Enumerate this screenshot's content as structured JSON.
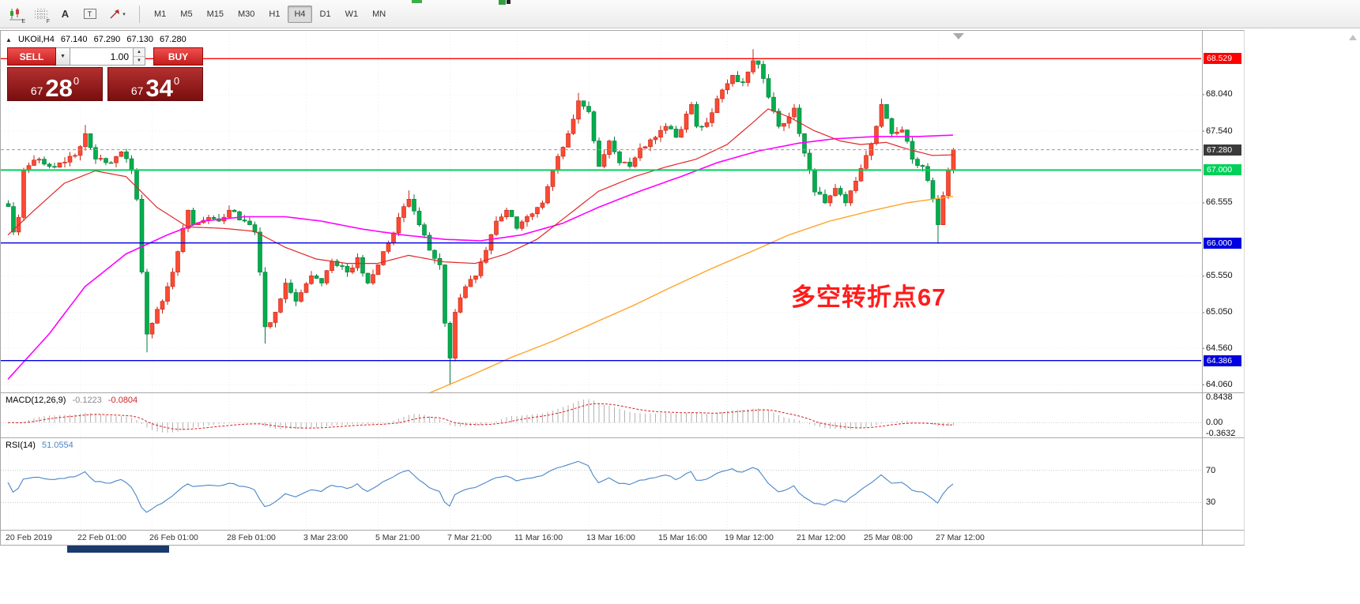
{
  "toolbar": {
    "tools": [
      {
        "name": "chart-indicator-icon",
        "badge": "E"
      },
      {
        "name": "grid-icon",
        "badge": "F"
      },
      {
        "name": "text-label-icon",
        "glyph": "A"
      },
      {
        "name": "text-box-icon",
        "glyph": "T"
      },
      {
        "name": "draw-arrow-icon",
        "caret": "▾"
      }
    ],
    "timeframes": [
      "M1",
      "M5",
      "M15",
      "M30",
      "H1",
      "H4",
      "D1",
      "W1",
      "MN"
    ],
    "active_timeframe": "H4"
  },
  "symbol_line": {
    "collapse_glyph": "▲",
    "symbol": "UKOil,H4",
    "open": "67.140",
    "high": "67.290",
    "low": "67.130",
    "close": "67.280"
  },
  "trade_panel": {
    "sell_label": "SELL",
    "buy_label": "BUY",
    "volume": "1.00",
    "caret_down": "▼",
    "spin_up": "▲",
    "spin_down": "▼",
    "sell_price": {
      "small": "67",
      "big": "28",
      "sup": "0"
    },
    "buy_price": {
      "small": "67",
      "big": "34",
      "sup": "0"
    }
  },
  "annotation": {
    "text": "多空转折点67",
    "color": "#ff1c1c"
  },
  "macd_panel": {
    "label": "MACD(12,26,9)",
    "main_value": "-0.1223",
    "signal_value": "-0.0804",
    "axis_labels": [
      {
        "v": 0.8438,
        "s": "0.8438"
      },
      {
        "v": 0,
        "s": "0.00"
      },
      {
        "v": -0.3632,
        "s": "-0.3632"
      }
    ]
  },
  "rsi_panel": {
    "label": "RSI(14)",
    "value": "51.0554",
    "levels": [
      {
        "v": 70,
        "s": "70"
      },
      {
        "v": 30,
        "s": "30"
      }
    ]
  },
  "time_axis": [
    {
      "i": 0,
      "s": "20 Feb 2019"
    },
    {
      "i": 14,
      "s": "22 Feb 01:00"
    },
    {
      "i": 28,
      "s": "26 Feb 01:00"
    },
    {
      "i": 43,
      "s": "28 Feb 01:00"
    },
    {
      "i": 58,
      "s": "3 Mar 23:00"
    },
    {
      "i": 72,
      "s": "5 Mar 21:00"
    },
    {
      "i": 86,
      "s": "7 Mar 21:00"
    },
    {
      "i": 99,
      "s": "11 Mar 16:00"
    },
    {
      "i": 113,
      "s": "13 Mar 16:00"
    },
    {
      "i": 127,
      "s": "15 Mar 16:00"
    },
    {
      "i": 140,
      "s": "19 Mar 12:00"
    },
    {
      "i": 154,
      "s": "21 Mar 12:00"
    },
    {
      "i": 167,
      "s": "25 Mar 08:00"
    },
    {
      "i": 181,
      "s": "27 Mar 12:00"
    }
  ],
  "price_axis": {
    "range": {
      "min": 63.95,
      "max": 68.9
    },
    "ticks": [
      {
        "v": 68.04,
        "s": "68.040"
      },
      {
        "v": 67.54,
        "s": "67.540"
      },
      {
        "v": 66.555,
        "s": "66.555"
      },
      {
        "v": 65.55,
        "s": "65.550"
      },
      {
        "v": 65.05,
        "s": "65.050"
      },
      {
        "v": 64.56,
        "s": "64.560"
      },
      {
        "v": 64.06,
        "s": "64.060"
      }
    ],
    "current": {
      "v": 67.28,
      "s": "67.280",
      "bg": "#3a3a3a"
    },
    "levels": [
      {
        "v": 68.529,
        "s": "68.529",
        "color": "#ff0000",
        "w": 1.4
      },
      {
        "v": 67.0,
        "s": "67.000",
        "color": "#00d05a",
        "w": 2
      },
      {
        "v": 66.0,
        "s": "66.000",
        "color": "#0000e0",
        "w": 1.4
      },
      {
        "v": 64.386,
        "s": "64.386",
        "color": "#0000e0",
        "w": 1.4
      }
    ]
  },
  "chart_data": {
    "type": "candlestick",
    "title": "UKOil,H4",
    "timeframe": "H4",
    "candle_count": 185,
    "ohlc_current": {
      "open": 67.14,
      "high": 67.29,
      "low": 67.13,
      "close": 67.28
    },
    "ylim": [
      63.95,
      68.9
    ],
    "colors": {
      "up": "#fb4a32",
      "up_stroke": "#c32415",
      "down": "#00ae4d",
      "down_stroke": "#077a38",
      "ma_fast": "#e02828",
      "ma_mid": "#ff00ff",
      "ma_slow": "#ffa428",
      "macd_hist": "#b2b2b2",
      "macd_signal": "#d82020",
      "rsi": "#4a86c8"
    },
    "price_path": [
      [
        0,
        66.5
      ],
      [
        1,
        66.15
      ],
      [
        2,
        66.35
      ],
      [
        3,
        67.0
      ],
      [
        6,
        67.15
      ],
      [
        8,
        67.05
      ],
      [
        10,
        67.1
      ],
      [
        13,
        67.2
      ],
      [
        15,
        67.5
      ],
      [
        17,
        67.15
      ],
      [
        20,
        67.1
      ],
      [
        22,
        67.25
      ],
      [
        24,
        67.0
      ],
      [
        25,
        66.6
      ],
      [
        26,
        65.6
      ],
      [
        27,
        64.75
      ],
      [
        28,
        64.9
      ],
      [
        30,
        65.2
      ],
      [
        32,
        65.6
      ],
      [
        34,
        66.2
      ],
      [
        35,
        66.45
      ],
      [
        36,
        66.25
      ],
      [
        39,
        66.35
      ],
      [
        41,
        66.3
      ],
      [
        43,
        66.45
      ],
      [
        46,
        66.3
      ],
      [
        48,
        66.15
      ],
      [
        49,
        65.6
      ],
      [
        50,
        64.85
      ],
      [
        52,
        65.05
      ],
      [
        54,
        65.45
      ],
      [
        56,
        65.2
      ],
      [
        59,
        65.55
      ],
      [
        61,
        65.45
      ],
      [
        63,
        65.75
      ],
      [
        66,
        65.6
      ],
      [
        68,
        65.8
      ],
      [
        70,
        65.45
      ],
      [
        72,
        65.7
      ],
      [
        74,
        66.0
      ],
      [
        76,
        66.35
      ],
      [
        78,
        66.6
      ],
      [
        80,
        66.25
      ],
      [
        82,
        65.9
      ],
      [
        84,
        65.7
      ],
      [
        85,
        64.9
      ],
      [
        86,
        64.42
      ],
      [
        87,
        65.05
      ],
      [
        89,
        65.4
      ],
      [
        91,
        65.55
      ],
      [
        93,
        65.9
      ],
      [
        95,
        66.3
      ],
      [
        97,
        66.45
      ],
      [
        99,
        66.2
      ],
      [
        102,
        66.4
      ],
      [
        104,
        66.55
      ],
      [
        106,
        67.0
      ],
      [
        109,
        67.5
      ],
      [
        111,
        67.95
      ],
      [
        113,
        67.8
      ],
      [
        115,
        67.05
      ],
      [
        117,
        67.4
      ],
      [
        119,
        67.1
      ],
      [
        121,
        67.05
      ],
      [
        123,
        67.3
      ],
      [
        126,
        67.45
      ],
      [
        128,
        67.6
      ],
      [
        130,
        67.45
      ],
      [
        133,
        67.9
      ],
      [
        134,
        67.6
      ],
      [
        136,
        67.65
      ],
      [
        139,
        68.1
      ],
      [
        141,
        68.3
      ],
      [
        143,
        68.2
      ],
      [
        145,
        68.5
      ],
      [
        146,
        68.45
      ],
      [
        148,
        68.0
      ],
      [
        150,
        67.6
      ],
      [
        153,
        67.85
      ],
      [
        154,
        67.5
      ],
      [
        156,
        67.0
      ],
      [
        157,
        66.7
      ],
      [
        159,
        66.55
      ],
      [
        161,
        66.75
      ],
      [
        163,
        66.55
      ],
      [
        165,
        66.85
      ],
      [
        167,
        67.2
      ],
      [
        169,
        67.6
      ],
      [
        170,
        67.9
      ],
      [
        172,
        67.5
      ],
      [
        174,
        67.55
      ],
      [
        176,
        67.15
      ],
      [
        178,
        67.05
      ],
      [
        180,
        66.6
      ],
      [
        181,
        66.25
      ],
      [
        183,
        67.0
      ],
      [
        184,
        67.28
      ]
    ],
    "spikes": [
      {
        "i": 15,
        "high": 67.62
      },
      {
        "i": 27,
        "low": 64.5
      },
      {
        "i": 50,
        "low": 64.62
      },
      {
        "i": 78,
        "high": 66.72
      },
      {
        "i": 86,
        "low": 64.05
      },
      {
        "i": 111,
        "high": 68.06
      },
      {
        "i": 145,
        "high": 68.66
      },
      {
        "i": 170,
        "high": 67.98
      },
      {
        "i": 181,
        "low": 65.99
      }
    ],
    "moving_averages": [
      {
        "name": "ma-slow-orange",
        "color_key": "ma_slow",
        "width": 1.4,
        "points": [
          [
            82,
            63.94
          ],
          [
            91,
            64.21
          ],
          [
            98,
            64.43
          ],
          [
            106,
            64.65
          ],
          [
            114,
            64.9
          ],
          [
            122,
            65.15
          ],
          [
            129,
            65.39
          ],
          [
            137,
            65.65
          ],
          [
            145,
            65.89
          ],
          [
            152,
            66.11
          ],
          [
            160,
            66.3
          ],
          [
            168,
            66.44
          ],
          [
            175,
            66.55
          ],
          [
            184,
            66.64
          ]
        ]
      },
      {
        "name": "ma-mid-magenta",
        "color_key": "ma_mid",
        "width": 1.6,
        "points": [
          [
            0,
            64.13
          ],
          [
            8,
            64.75
          ],
          [
            15,
            65.4
          ],
          [
            23,
            65.85
          ],
          [
            31,
            66.11
          ],
          [
            38,
            66.3
          ],
          [
            46,
            66.36
          ],
          [
            54,
            66.36
          ],
          [
            61,
            66.3
          ],
          [
            69,
            66.19
          ],
          [
            77,
            66.11
          ],
          [
            85,
            66.05
          ],
          [
            92,
            66.03
          ],
          [
            100,
            66.11
          ],
          [
            108,
            66.27
          ],
          [
            115,
            66.49
          ],
          [
            123,
            66.71
          ],
          [
            131,
            66.91
          ],
          [
            138,
            67.1
          ],
          [
            146,
            67.26
          ],
          [
            154,
            67.37
          ],
          [
            161,
            67.43
          ],
          [
            169,
            67.46
          ],
          [
            177,
            67.46
          ],
          [
            184,
            67.48
          ]
        ]
      },
      {
        "name": "ma-fast-red",
        "color_key": "ma_fast",
        "width": 1.2,
        "points": [
          [
            0,
            66.11
          ],
          [
            5,
            66.44
          ],
          [
            11,
            66.82
          ],
          [
            17,
            66.99
          ],
          [
            23,
            66.91
          ],
          [
            29,
            66.49
          ],
          [
            35,
            66.22
          ],
          [
            42,
            66.2
          ],
          [
            48,
            66.16
          ],
          [
            54,
            65.94
          ],
          [
            60,
            65.78
          ],
          [
            66,
            65.72
          ],
          [
            72,
            65.72
          ],
          [
            78,
            65.83
          ],
          [
            85,
            65.74
          ],
          [
            91,
            65.72
          ],
          [
            97,
            65.85
          ],
          [
            103,
            66.05
          ],
          [
            109,
            66.38
          ],
          [
            115,
            66.71
          ],
          [
            122,
            66.91
          ],
          [
            128,
            67.04
          ],
          [
            134,
            67.15
          ],
          [
            140,
            67.35
          ],
          [
            145,
            67.65
          ],
          [
            148,
            67.84
          ],
          [
            152,
            67.73
          ],
          [
            157,
            67.54
          ],
          [
            162,
            67.4
          ],
          [
            166,
            67.35
          ],
          [
            171,
            67.38
          ],
          [
            175,
            67.29
          ],
          [
            180,
            67.2
          ],
          [
            184,
            67.21
          ]
        ]
      }
    ]
  }
}
